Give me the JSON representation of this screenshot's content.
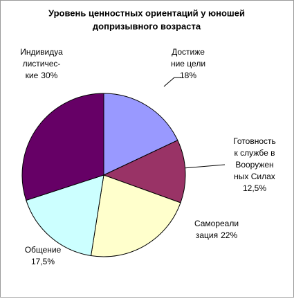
{
  "chart_data": {
    "type": "pie",
    "title": [
      "Уровень ценностных ориентаций у юношей",
      "допризывного возраста"
    ],
    "categories": [
      [
        "Достиже",
        "ние цели"
      ],
      [
        "Готовность",
        "к службе в",
        "Вооружен",
        "ных Силах"
      ],
      [
        "Самореали",
        "зация"
      ],
      [
        "Общение"
      ],
      [
        "Индивидуа",
        "листичес-",
        "кие"
      ]
    ],
    "values": [
      18,
      12.5,
      22,
      17.5,
      30
    ],
    "value_labels": [
      "18%",
      "12,5%",
      "22%",
      "17,5%",
      "30%"
    ],
    "colors": [
      "#9999ff",
      "#993366",
      "#ffffcc",
      "#ccffff",
      "#660066"
    ]
  }
}
